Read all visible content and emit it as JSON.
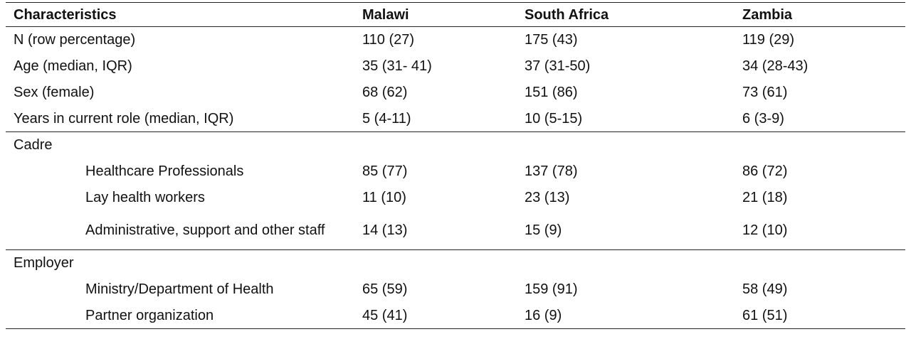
{
  "table": {
    "headers": [
      "Characteristics",
      "Malawi",
      "South Africa",
      "Zambia"
    ],
    "rows": [
      {
        "label": "N (row percentage)",
        "values": [
          "110 (27)",
          "175 (43)",
          "119 (29)"
        ]
      },
      {
        "label": "Age (median, IQR)",
        "values": [
          "35 (31- 41)",
          "37 (31-50)",
          "34 (28-43)"
        ]
      },
      {
        "label": "Sex (female)",
        "values": [
          "68 (62)",
          "151 (86)",
          "73 (61)"
        ]
      },
      {
        "label": "Years in current role (median, IQR)",
        "values": [
          "5 (4-11)",
          "10 (5-15)",
          "6 (3-9)"
        ]
      },
      {
        "section": "Cadre"
      },
      {
        "label": "Healthcare Professionals",
        "values": [
          "85 (77)",
          "137 (78)",
          "86 (72)"
        ]
      },
      {
        "label": "Lay health workers",
        "values": [
          "11 (10)",
          "23 (13)",
          "21 (18)"
        ]
      },
      {
        "label": "Administrative, support and other staff",
        "values": [
          "14 (13)",
          "15 (9)",
          "12 (10)"
        ]
      },
      {
        "section": "Employer"
      },
      {
        "label": "Ministry/Department of Health",
        "values": [
          "65 (59)",
          "159 (91)",
          "58 (49)"
        ]
      },
      {
        "label": "Partner organization",
        "values": [
          "45 (41)",
          "16 (9)",
          "61 (51)"
        ]
      }
    ]
  }
}
